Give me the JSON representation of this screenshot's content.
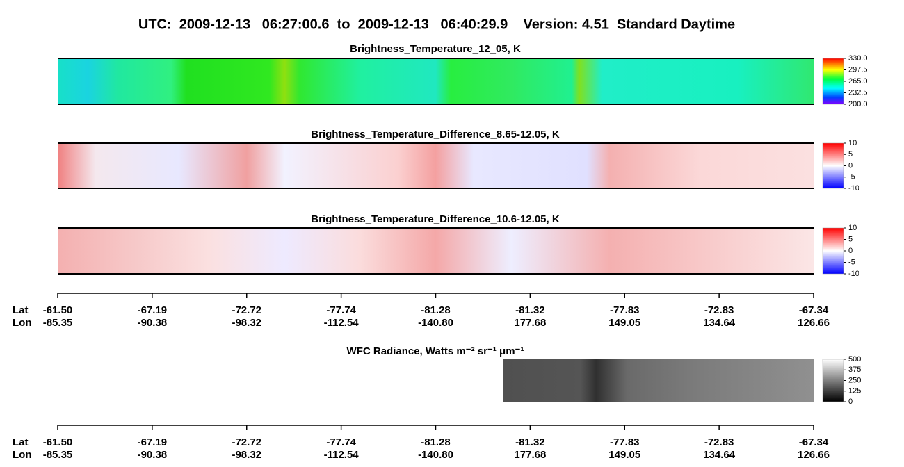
{
  "title": "UTC:  2009-12-13   06:27:00.6  to  2009-12-13   06:40:29.9    Version: 4.51  Standard Daytime",
  "panels": [
    {
      "title": "Brightness_Temperature_12_05, K",
      "colorbar_ticks": [
        {
          "value": 330,
          "label": "330.0"
        },
        {
          "value": 297.5,
          "label": "297.5"
        },
        {
          "value": 265,
          "label": "265.0"
        },
        {
          "value": 232.5,
          "label": "232.5"
        },
        {
          "value": 200,
          "label": "200.0"
        }
      ]
    },
    {
      "title": "Brightness_Temperature_Difference_8.65-12.05, K",
      "colorbar_ticks": [
        10,
        5,
        0,
        -5,
        -10
      ]
    },
    {
      "title": "Brightness_Temperature_Difference_10.6-12.05, K",
      "colorbar_ticks": [
        10,
        5,
        0,
        -5,
        -10
      ]
    },
    {
      "title": "WFC Radiance, Watts m⁻² sr⁻¹ μm⁻¹",
      "colorbar_ticks": [
        500,
        375,
        250,
        125,
        0
      ]
    }
  ],
  "axes": [
    {
      "row_labels": [
        "Lat",
        "Lon"
      ],
      "lat": [
        "-61.50",
        "-67.19",
        "-72.72",
        "-77.74",
        "-81.28",
        "-81.32",
        "-77.83",
        "-72.83",
        "-67.34"
      ],
      "lon": [
        "-85.35",
        "-90.38",
        "-98.32",
        "-112.54",
        "-140.80",
        "177.68",
        "149.05",
        "134.64",
        "126.66"
      ]
    },
    {
      "row_labels": [
        "Lat",
        "Lon"
      ],
      "lat": [
        "-61.50",
        "-67.19",
        "-72.72",
        "-77.74",
        "-81.28",
        "-81.32",
        "-77.83",
        "-72.83",
        "-67.34"
      ],
      "lon": [
        "-85.35",
        "-90.38",
        "-98.32",
        "-112.54",
        "-140.80",
        "177.68",
        "149.05",
        "134.64",
        "126.66"
      ]
    }
  ]
}
